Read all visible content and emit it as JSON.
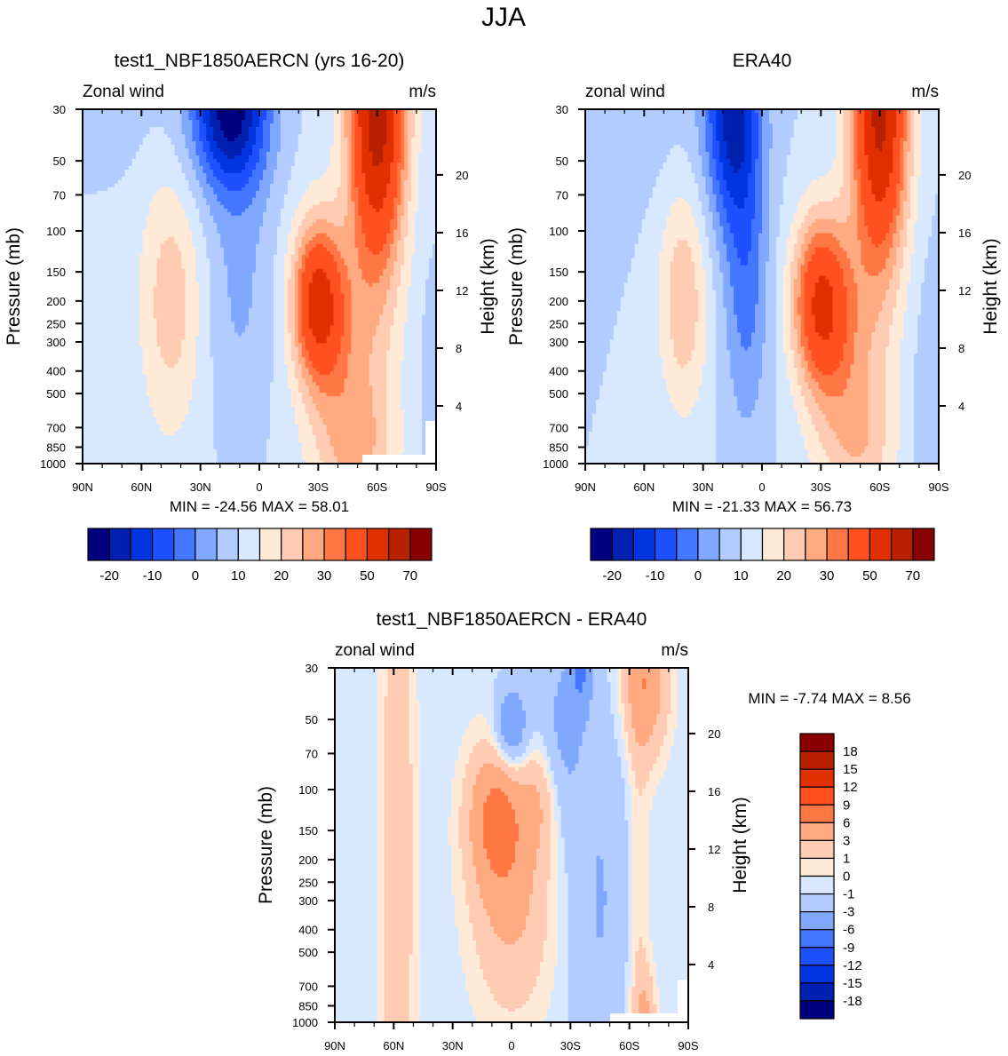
{
  "figure": {
    "main_title": "JJA"
  },
  "chart_data": [
    {
      "type": "heatmap",
      "subtype": "filled-contour latitude-pressure cross-section",
      "title": "test1_NBF1850AERCN (yrs 16-20)",
      "left_string": "Zonal wind",
      "right_string": "m/s",
      "xlabel": "",
      "ylabel": "Pressure (mb)",
      "ylabel_right": "Height (km)",
      "x_ticks": [
        "90N",
        "60N",
        "30N",
        "0",
        "30S",
        "60S",
        "90S"
      ],
      "x_range": [
        90,
        -90
      ],
      "y_ticks": [
        30,
        50,
        70,
        100,
        150,
        200,
        250,
        300,
        400,
        500,
        700,
        850,
        1000
      ],
      "y_range_mb": [
        1000,
        30
      ],
      "y_scale": "log",
      "right_ticks_km": [
        4,
        8,
        12,
        16,
        20
      ],
      "min_label": "MIN = -24.56  MAX =  58.01",
      "min": -24.56,
      "max": 58.01,
      "colorbar": {
        "orientation": "horizontal",
        "levels": [
          -25,
          -20,
          -15,
          -10,
          -5,
          0,
          5,
          10,
          15,
          20,
          25,
          30,
          40,
          50,
          60,
          70
        ],
        "labels": [
          "-20",
          "-10",
          "0",
          "10",
          "20",
          "30",
          "50",
          "70"
        ],
        "colors": [
          "#000080",
          "#0020b0",
          "#0035e0",
          "#1e50ff",
          "#4477ff",
          "#80a8ff",
          "#b3ccff",
          "#d8e8ff",
          "#ffead8",
          "#ffccb3",
          "#ffaa80",
          "#ff7744",
          "#ff5020",
          "#e03000",
          "#b82000",
          "#880000"
        ]
      },
      "field": {
        "base": 6,
        "note": "approximate field: base + sum of gaussian features (lat deg, log-pressure mb, amplitude m/s)",
        "features": [
          {
            "lat": 15,
            "p": 30,
            "slat": 14,
            "sp": 0.55,
            "amp": -32
          },
          {
            "lat": 10,
            "p": 150,
            "slat": 12,
            "sp": 1.2,
            "amp": -7
          },
          {
            "lat": 45,
            "p": 200,
            "slat": 11,
            "sp": 0.9,
            "amp": 12
          },
          {
            "lat": -30,
            "p": 200,
            "slat": 9,
            "sp": 0.55,
            "amp": 36
          },
          {
            "lat": -45,
            "p": 400,
            "slat": 15,
            "sp": 0.8,
            "amp": 12
          },
          {
            "lat": -60,
            "p": 30,
            "slat": 10,
            "sp": 1.1,
            "amp": 50
          },
          {
            "lat": -50,
            "p": 900,
            "slat": 14,
            "sp": 0.45,
            "amp": 10
          },
          {
            "lat": 85,
            "p": 30,
            "slat": 25,
            "sp": 0.5,
            "amp": -4
          },
          {
            "lat": -88,
            "p": 500,
            "slat": 6,
            "sp": 1.2,
            "amp": -3
          }
        ]
      }
    },
    {
      "type": "heatmap",
      "subtype": "filled-contour latitude-pressure cross-section",
      "title": "ERA40",
      "left_string": "zonal wind",
      "right_string": "m/s",
      "xlabel": "",
      "ylabel": "Pressure (mb)",
      "ylabel_right": "Height (km)",
      "x_ticks": [
        "90N",
        "60N",
        "30N",
        "0",
        "30S",
        "60S",
        "90S"
      ],
      "x_range": [
        90,
        -90
      ],
      "y_ticks": [
        30,
        50,
        70,
        100,
        150,
        200,
        250,
        300,
        400,
        500,
        700,
        850,
        1000
      ],
      "y_range_mb": [
        1000,
        30
      ],
      "y_scale": "log",
      "right_ticks_km": [
        4,
        8,
        12,
        16,
        20
      ],
      "min_label": "MIN = -21.33  MAX =  56.73",
      "min": -21.33,
      "max": 56.73,
      "colorbar": {
        "orientation": "horizontal",
        "levels": [
          -25,
          -20,
          -15,
          -10,
          -5,
          0,
          5,
          10,
          15,
          20,
          25,
          30,
          40,
          50,
          60,
          70
        ],
        "labels": [
          "-20",
          "-10",
          "0",
          "10",
          "20",
          "30",
          "50",
          "70"
        ],
        "colors": [
          "#000080",
          "#0020b0",
          "#0035e0",
          "#1e50ff",
          "#4477ff",
          "#80a8ff",
          "#b3ccff",
          "#d8e8ff",
          "#ffead8",
          "#ffccb3",
          "#ffaa80",
          "#ff7744",
          "#ff5020",
          "#e03000",
          "#b82000",
          "#880000"
        ]
      },
      "field": {
        "base": 5,
        "note": "approximate field: base + sum of gaussian features (lat deg, log-pressure mb, amplitude m/s)",
        "features": [
          {
            "lat": 15,
            "p": 30,
            "slat": 10,
            "sp": 0.8,
            "amp": -27
          },
          {
            "lat": 8,
            "p": 170,
            "slat": 8,
            "sp": 1.0,
            "amp": -12
          },
          {
            "lat": 40,
            "p": 200,
            "slat": 9,
            "sp": 0.8,
            "amp": 14
          },
          {
            "lat": -30,
            "p": 200,
            "slat": 10,
            "sp": 0.6,
            "amp": 34
          },
          {
            "lat": -45,
            "p": 400,
            "slat": 15,
            "sp": 0.8,
            "amp": 12
          },
          {
            "lat": -60,
            "p": 30,
            "slat": 10,
            "sp": 1.1,
            "amp": 48
          },
          {
            "lat": -50,
            "p": 900,
            "slat": 14,
            "sp": 0.45,
            "amp": 8
          },
          {
            "lat": 85,
            "p": 30,
            "slat": 30,
            "sp": 0.6,
            "amp": -5
          },
          {
            "lat": -85,
            "p": 600,
            "slat": 8,
            "sp": 1.2,
            "amp": -3
          }
        ]
      }
    },
    {
      "type": "heatmap",
      "subtype": "filled-contour latitude-pressure cross-section (difference)",
      "title": "test1_NBF1850AERCN - ERA40",
      "left_string": "zonal wind",
      "right_string": "m/s",
      "xlabel": "",
      "ylabel": "Pressure (mb)",
      "ylabel_right": "Height (km)",
      "x_ticks": [
        "90N",
        "60N",
        "30N",
        "0",
        "30S",
        "60S",
        "90S"
      ],
      "x_range": [
        90,
        -90
      ],
      "y_ticks": [
        30,
        50,
        70,
        100,
        150,
        200,
        250,
        300,
        400,
        500,
        700,
        850,
        1000
      ],
      "y_range_mb": [
        1000,
        30
      ],
      "y_scale": "log",
      "right_ticks_km": [
        4,
        8,
        12,
        16,
        20
      ],
      "min_label": "MIN =  -7.74  MAX =   8.56",
      "min": -7.74,
      "max": 8.56,
      "colorbar": {
        "orientation": "vertical",
        "levels": [
          -18,
          -15,
          -12,
          -9,
          -6,
          -3,
          -1,
          0,
          1,
          3,
          6,
          9,
          12,
          15,
          18
        ],
        "labels": [
          "18",
          "15",
          "12",
          "9",
          "6",
          "3",
          "1",
          "0",
          "-1",
          "-3",
          "-6",
          "-9",
          "-12",
          "-15",
          "-18"
        ],
        "colors": [
          "#000080",
          "#0020b0",
          "#0035e0",
          "#1e50ff",
          "#4477ff",
          "#80a8ff",
          "#b3ccff",
          "#d8e8ff",
          "#ffead8",
          "#ffccb3",
          "#ffaa80",
          "#ff7744",
          "#ff5020",
          "#e03000",
          "#b82000",
          "#880000"
        ]
      },
      "field": {
        "base": -0.6,
        "note": "approximate field: base + sum of gaussian features (lat deg, log-pressure mb, amplitude m/s)",
        "features": [
          {
            "lat": 58,
            "p": 200,
            "slat": 6,
            "sp": 2.5,
            "amp": 3.2
          },
          {
            "lat": 8,
            "p": 130,
            "slat": 10,
            "sp": 0.5,
            "amp": 6.5
          },
          {
            "lat": -15,
            "p": 110,
            "slat": 7,
            "sp": 0.4,
            "amp": 3
          },
          {
            "lat": 0,
            "p": 300,
            "slat": 14,
            "sp": 0.8,
            "amp": 4
          },
          {
            "lat": 0,
            "p": 55,
            "slat": 6,
            "sp": 0.3,
            "amp": -6
          },
          {
            "lat": -35,
            "p": 30,
            "slat": 4,
            "sp": 0.3,
            "amp": -5
          },
          {
            "lat": -68,
            "p": 35,
            "slat": 8,
            "sp": 0.5,
            "amp": 6
          },
          {
            "lat": -65,
            "p": 700,
            "slat": 4,
            "sp": 2.5,
            "amp": 1.8
          },
          {
            "lat": -68,
            "p": 900,
            "slat": 4,
            "sp": 0.3,
            "amp": 3
          },
          {
            "lat": -45,
            "p": 300,
            "slat": 10,
            "sp": 1.5,
            "amp": -2.5
          },
          {
            "lat": -25,
            "p": 60,
            "slat": 8,
            "sp": 0.7,
            "amp": -3
          }
        ]
      }
    }
  ]
}
